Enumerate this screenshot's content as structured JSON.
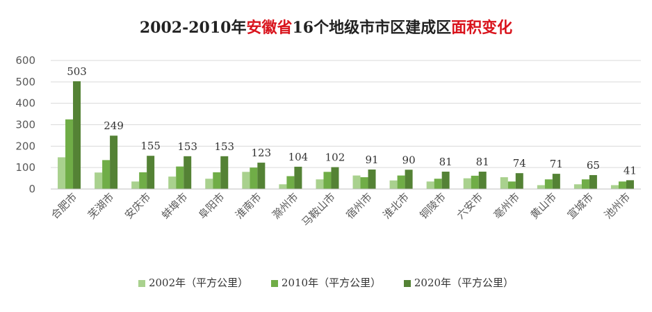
{
  "title": {
    "part1": "2002-2010年",
    "part2": "安徽省",
    "part3": "16个地级市市区建成区",
    "part4": "面积变化",
    "accent_color": "#d9141d"
  },
  "chart_data": {
    "type": "bar",
    "categories": [
      "合肥市",
      "芜湖市",
      "安庆市",
      "蚌埠市",
      "阜阳市",
      "淮南市",
      "滁州市",
      "马鞍山市",
      "宿州市",
      "淮北市",
      "铜陵市",
      "六安市",
      "亳州市",
      "黄山市",
      "宣城市",
      "池州市"
    ],
    "series": [
      {
        "name": "2002年（平方公里）",
        "color": "#a9d18e",
        "values": [
          148,
          77,
          35,
          58,
          48,
          80,
          22,
          45,
          63,
          40,
          35,
          50,
          55,
          18,
          22,
          18
        ]
      },
      {
        "name": "2010年（平方公里）",
        "color": "#70ad47",
        "values": [
          325,
          135,
          78,
          105,
          78,
          100,
          60,
          80,
          55,
          63,
          48,
          62,
          35,
          45,
          45,
          35
        ]
      },
      {
        "name": "2020年（平方公里）",
        "color": "#548235",
        "values": [
          503,
          249,
          155,
          153,
          153,
          123,
          104,
          102,
          91,
          90,
          81,
          81,
          74,
          71,
          65,
          41
        ]
      }
    ],
    "data_labels_series": 2,
    "ylim": [
      0,
      600
    ],
    "yticks": [
      0,
      100,
      200,
      300,
      400,
      500,
      600
    ],
    "grid": true,
    "legend_position": "bottom"
  }
}
